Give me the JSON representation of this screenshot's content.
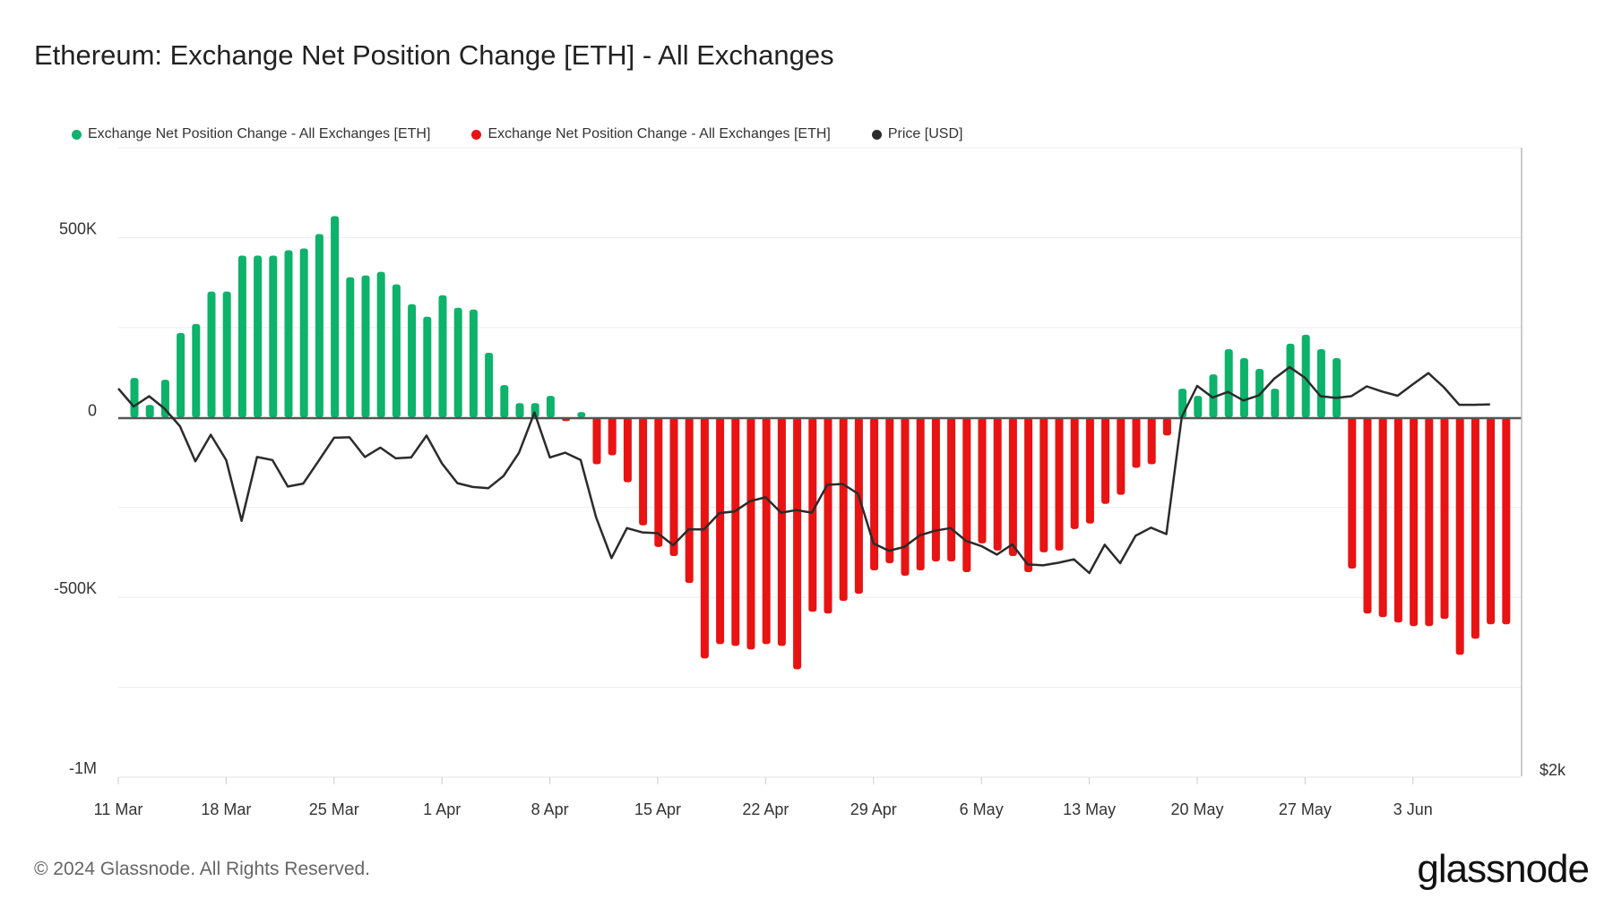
{
  "title": "Ethereum: Exchange Net Position Change [ETH] - All Exchanges",
  "legend": [
    {
      "label": "Exchange Net Position Change - All Exchanges [ETH]",
      "color": "#0db26b"
    },
    {
      "label": "Exchange Net Position Change - All Exchanges [ETH]",
      "color": "#e81313"
    },
    {
      "label": "Price [USD]",
      "color": "#2b2b2b"
    }
  ],
  "copyright": "© 2024 Glassnode. All Rights Reserved.",
  "brand": "glassnode",
  "chart_data": {
    "type": "bar",
    "title": "Ethereum: Exchange Net Position Change [ETH] - All Exchanges",
    "x_tick_labels": [
      "11 Mar",
      "18 Mar",
      "25 Mar",
      "1 Apr",
      "8 Apr",
      "15 Apr",
      "22 Apr",
      "29 Apr",
      "6 May",
      "13 May",
      "20 May",
      "27 May",
      "3 Jun"
    ],
    "y_tick_labels": [
      "500K",
      "0",
      "-500K",
      "-1M"
    ],
    "y2_tick_labels": [
      "$2k"
    ],
    "ylim": [
      -1000000,
      750000
    ],
    "x_start": "2024-03-11",
    "grid": true,
    "legend_position": "top-left",
    "positive_color": "#0db26b",
    "negative_color": "#e81313",
    "price_color": "#2b2b2b",
    "series": [
      {
        "name": "Exchange Net Position Change - All Exchanges [ETH]",
        "values": [
          110000,
          35000,
          105000,
          235000,
          260000,
          350000,
          350000,
          450000,
          450000,
          450000,
          465000,
          470000,
          510000,
          560000,
          390000,
          395000,
          405000,
          370000,
          315000,
          280000,
          340000,
          305000,
          300000,
          180000,
          90000,
          40000,
          40000,
          60000,
          -10000,
          15000,
          -130000,
          -105000,
          -180000,
          -300000,
          -360000,
          -385000,
          -460000,
          -670000,
          -630000,
          -635000,
          -645000,
          -630000,
          -635000,
          -700000,
          -540000,
          -545000,
          -510000,
          -490000,
          -425000,
          -405000,
          -440000,
          -425000,
          -400000,
          -400000,
          -430000,
          -350000,
          -370000,
          -385000,
          -430000,
          -375000,
          -370000,
          -310000,
          -295000,
          -240000,
          -215000,
          -140000,
          -130000,
          -50000,
          80000,
          60000,
          120000,
          190000,
          165000,
          135000,
          80000,
          205000,
          230000,
          190000,
          165000,
          -420000,
          -545000,
          -555000,
          -570000,
          -580000,
          -580000,
          -560000,
          -660000,
          -615000,
          -575000,
          -575000
        ]
      },
      {
        "name": "Price [USD]",
        "values": [
          4.31,
          3.89,
          4.13,
          3.84,
          3.43,
          2.61,
          3.23,
          2.64,
          1.22,
          2.71,
          2.64,
          2.02,
          2.09,
          2.62,
          3.16,
          3.17,
          2.71,
          2.93,
          2.68,
          2.7,
          3.21,
          2.56,
          2.1,
          2.01,
          1.98,
          2.27,
          2.81,
          3.75,
          2.7,
          2.81,
          2.64,
          1.3,
          0.35,
          1.05,
          0.95,
          0.93,
          0.65,
          1.02,
          1.02,
          1.4,
          1.44,
          1.68,
          1.77,
          1.41,
          1.47,
          1.41,
          2.06,
          2.08,
          1.85,
          0.69,
          0.52,
          0.61,
          0.88,
          0.99,
          1.05,
          0.75,
          0.63,
          0.43,
          0.67,
          0.2,
          0.18,
          0.24,
          0.32,
          0.0,
          0.66,
          0.23,
          0.87,
          1.06,
          0.91,
          3.65,
          4.37,
          4.1,
          4.23,
          4.03,
          4.15,
          4.54,
          4.81,
          4.56,
          4.13,
          4.09,
          4.13,
          4.36,
          4.24,
          4.14,
          4.41,
          4.67,
          4.34,
          3.93,
          3.93,
          3.94
        ]
      }
    ]
  }
}
